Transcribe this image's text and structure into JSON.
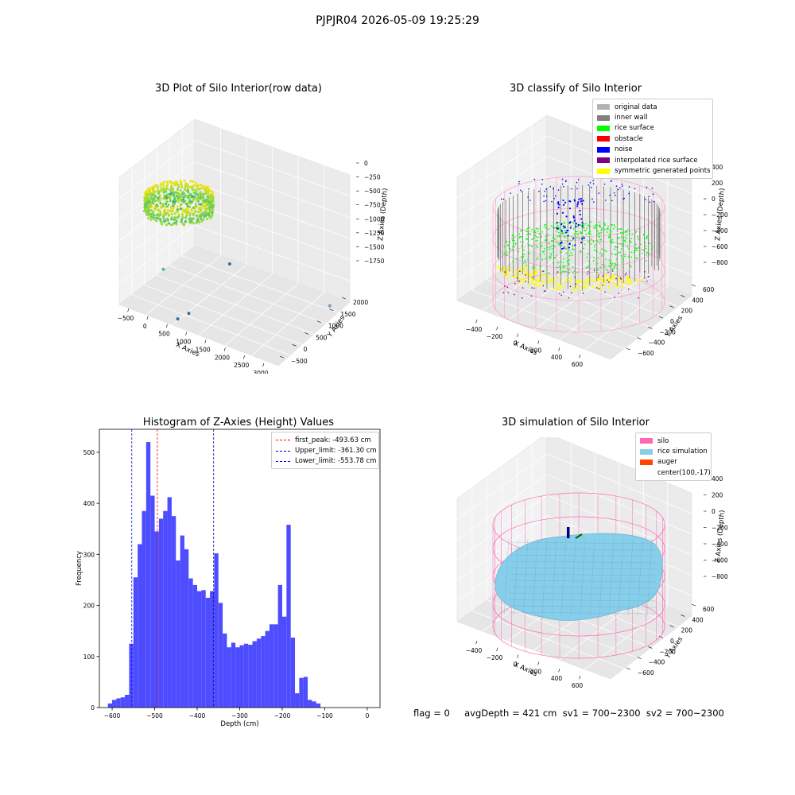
{
  "suptitle": "PJPJR04 2026-05-09 19:25:29",
  "footer": "flag = 0     avgDepth = 421 cm  sv1 = 700~2300  sv2 = 700~2300",
  "chart_data": [
    {
      "type": "scatter",
      "title": "3D Plot of Silo Interior(row data)",
      "xlabel": "X Axies",
      "ylabel": "Y Axies",
      "zlabel": "Z Axies (Depth)",
      "x_ticks": [
        "−500",
        "0",
        "500",
        "1000",
        "1500",
        "2000",
        "2500",
        "3000"
      ],
      "y_ticks": [
        "−500",
        "0",
        "500",
        "1000",
        "1500",
        "2000"
      ],
      "z_ticks": [
        "0",
        "−250",
        "−500",
        "−750",
        "−1000",
        "−1250",
        "−1500",
        "−1750"
      ],
      "xlim": [
        -650,
        3100
      ],
      "ylim": [
        -650,
        2150
      ],
      "zlim": [
        -1900,
        50
      ],
      "outliers": [
        {
          "x": 150,
          "y": -250,
          "z": -1300,
          "color": "#47c16e"
        },
        {
          "x": 900,
          "y": 1100,
          "z": -1500,
          "color": "#3b6fa0"
        },
        {
          "x": 900,
          "y": -500,
          "z": -1700,
          "color": "#3b6fa0"
        },
        {
          "x": 700,
          "y": -600,
          "z": -1800,
          "color": "#3b6fa0"
        },
        {
          "x": 2900,
          "y": 1700,
          "z": -1850,
          "color": "#7a9cc0"
        }
      ]
    },
    {
      "type": "scatter",
      "title": "3D classify of Silo Interior",
      "xlabel": "X Axies",
      "ylabel": "Y Axies",
      "zlabel": "Z Axies (Depth)",
      "x_ticks": [
        "−400",
        "−200",
        "0",
        "200",
        "400",
        "600"
      ],
      "y_ticks": [
        "−600",
        "−400",
        "−200",
        "0",
        "200",
        "400",
        "600"
      ],
      "z_ticks": [
        "0",
        "−200",
        "−400",
        "−600",
        "−800"
      ],
      "z_ticks_right": [
        "400",
        "200"
      ],
      "legend": [
        {
          "label": "original data",
          "color": "#b3b3b3"
        },
        {
          "label": "inner wall",
          "color": "#808080"
        },
        {
          "label": "rice surface",
          "color": "#00ff00"
        },
        {
          "label": "obstacle",
          "color": "#ff0000"
        },
        {
          "label": "noise",
          "color": "#0000ff"
        },
        {
          "label": "interpolated rice surface",
          "color": "#800080"
        },
        {
          "label": "symmetric generated points",
          "color": "#ffff00"
        }
      ]
    },
    {
      "type": "bar",
      "title": "Histogram of Z-Axies (Height) Values",
      "xlabel": "Depth (cm)",
      "ylabel": "Frequency",
      "xlim": [
        -630,
        30
      ],
      "ylim": [
        0,
        545
      ],
      "x_ticks": [
        -600,
        -500,
        -400,
        -300,
        -200,
        -100,
        0
      ],
      "y_ticks": [
        0,
        100,
        200,
        300,
        400,
        500
      ],
      "bin_start": -610,
      "bin_width": 10,
      "values": [
        8,
        15,
        18,
        20,
        25,
        125,
        255,
        320,
        385,
        520,
        415,
        345,
        370,
        385,
        412,
        375,
        288,
        337,
        310,
        253,
        240,
        228,
        230,
        215,
        228,
        302,
        205,
        145,
        118,
        127,
        118,
        122,
        125,
        123,
        130,
        135,
        140,
        150,
        163,
        163,
        240,
        178,
        358,
        137,
        28,
        58,
        60,
        15,
        12,
        8
      ],
      "bar_color": "#4d4dff",
      "vlines": [
        {
          "x": -493.63,
          "color": "#ff0000",
          "label": "first_peak: -493.63 cm"
        },
        {
          "x": -361.3,
          "color": "#00008b",
          "label": "Upper_limit: -361.30 cm"
        },
        {
          "x": -553.78,
          "color": "#0000ff",
          "label": "Lower_limit: -553.78 cm"
        }
      ]
    },
    {
      "type": "surface",
      "title": "3D simulation of Silo Interior",
      "xlabel": "X Axies",
      "ylabel": "Y Axies",
      "zlabel": "Z Axies (Depth)",
      "x_ticks": [
        "−400",
        "−200",
        "0",
        "200",
        "400",
        "600"
      ],
      "y_ticks": [
        "−600",
        "−400",
        "−200",
        "0",
        "200",
        "400",
        "600"
      ],
      "z_ticks": [
        "400",
        "200",
        "0",
        "−200",
        "−400",
        "−600",
        "−800"
      ],
      "legend": [
        {
          "label": "silo",
          "color": "#ff69b4"
        },
        {
          "label": "rice simulation",
          "color": "#87ceeb"
        },
        {
          "label": "auger",
          "color": "#ff4500"
        },
        {
          "label": "center(100,-17)",
          "color": ""
        }
      ]
    }
  ]
}
